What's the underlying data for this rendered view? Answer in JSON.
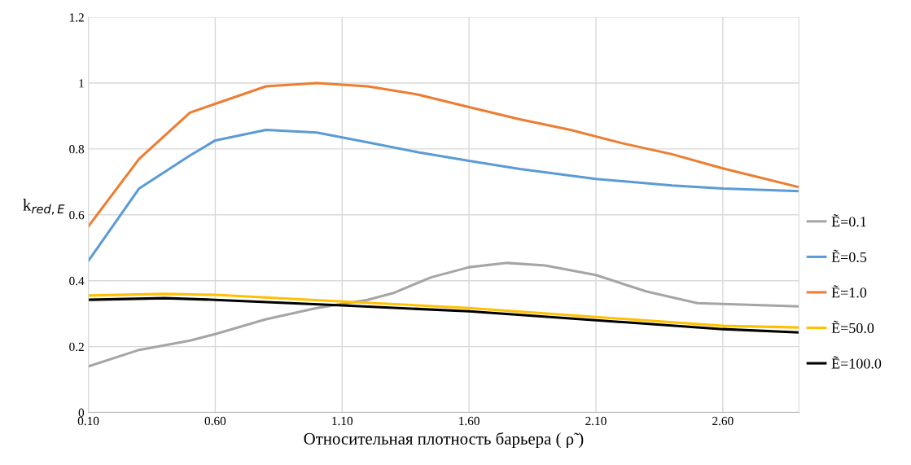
{
  "chart_data": {
    "type": "line",
    "xlabel": "Относительная плотность барьера ( ρ̃ )",
    "ylabel": "k$_{red,E}$",
    "xlim": [
      0.1,
      2.9
    ],
    "xticks": [
      {
        "value": 0.1,
        "label": "0.10"
      },
      {
        "value": 0.6,
        "label": "0.60"
      },
      {
        "value": 1.1,
        "label": "1.10"
      },
      {
        "value": 1.6,
        "label": "1.60"
      },
      {
        "value": 2.1,
        "label": "2.10"
      },
      {
        "value": 2.6,
        "label": "2.60"
      }
    ],
    "ylim": [
      0,
      1.2
    ],
    "yticks": [
      0,
      0.2,
      0.4,
      0.6,
      0.8,
      1,
      {
        "value": 1.2,
        "label": "1.2"
      }
    ],
    "grid": true,
    "legend": "right",
    "line_style": "solid",
    "marker": "none",
    "series": [
      {
        "name": "Ẽ=0.1",
        "color": "#a5a5a5",
        "x": [
          0.1,
          0.3,
          0.5,
          0.6,
          0.8,
          1.0,
          1.2,
          1.3,
          1.45,
          1.6,
          1.75,
          1.9,
          2.1,
          2.3,
          2.5,
          2.7,
          2.9
        ],
        "values": [
          0.14,
          0.19,
          0.218,
          0.238,
          0.283,
          0.317,
          0.342,
          0.362,
          0.41,
          0.441,
          0.454,
          0.446,
          0.417,
          0.367,
          0.332,
          0.327,
          0.322
        ]
      },
      {
        "name": "Ẽ=0.5",
        "color": "#5b9bd5",
        "x": [
          0.1,
          0.3,
          0.5,
          0.6,
          0.8,
          1.0,
          1.2,
          1.4,
          1.6,
          1.8,
          2.1,
          2.4,
          2.6,
          2.9
        ],
        "values": [
          0.46,
          0.68,
          0.78,
          0.826,
          0.858,
          0.85,
          0.82,
          0.79,
          0.764,
          0.739,
          0.709,
          0.689,
          0.68,
          0.672
        ]
      },
      {
        "name": "Ẽ=1.0",
        "color": "#ed7d31",
        "x": [
          0.1,
          0.3,
          0.5,
          0.6,
          0.8,
          1.0,
          1.2,
          1.4,
          1.6,
          1.8,
          2.0,
          2.2,
          2.4,
          2.6,
          2.9
        ],
        "values": [
          0.565,
          0.77,
          0.91,
          0.937,
          0.99,
          1.0,
          0.99,
          0.965,
          0.927,
          0.89,
          0.858,
          0.818,
          0.784,
          0.741,
          0.684
        ]
      },
      {
        "name": "Ẽ=50.0",
        "color": "#ffc000",
        "x": [
          0.1,
          0.4,
          0.6,
          1.1,
          1.6,
          2.1,
          2.6,
          2.9
        ],
        "values": [
          0.355,
          0.36,
          0.357,
          0.337,
          0.317,
          0.29,
          0.263,
          0.258
        ]
      },
      {
        "name": "Ẽ=100.0",
        "color": "#000000",
        "x": [
          0.1,
          0.4,
          0.6,
          1.1,
          1.6,
          2.1,
          2.6,
          2.9
        ],
        "values": [
          0.342,
          0.347,
          0.342,
          0.325,
          0.307,
          0.28,
          0.253,
          0.243
        ]
      }
    ]
  }
}
